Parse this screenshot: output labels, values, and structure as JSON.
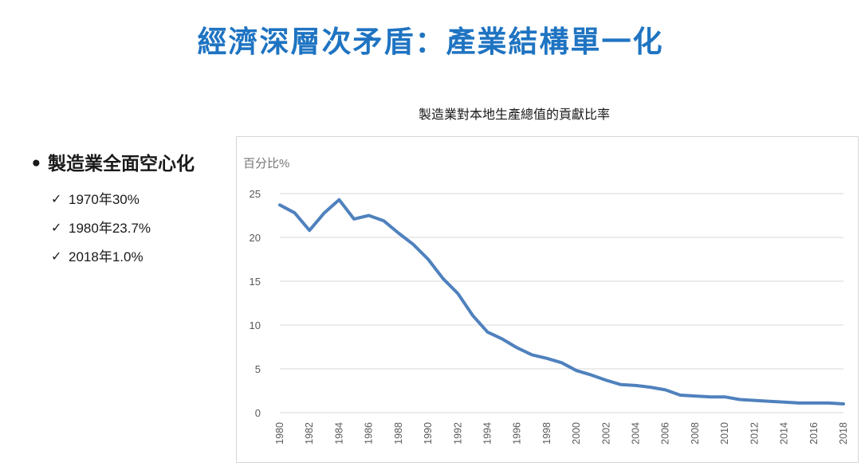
{
  "slide": {
    "title": "經濟深層次矛盾：產業結構單一化"
  },
  "bullets": {
    "main": "製造業全面空心化",
    "checks": [
      "1970年30%",
      "1980年23.7%",
      "2018年1.0%"
    ]
  },
  "chart_data": {
    "type": "line",
    "title": "製造業對本地生產總值的貢獻比率",
    "ylabel": "百分比%",
    "xlabel": "",
    "ylim": [
      0,
      25
    ],
    "yticks": [
      0,
      5,
      10,
      15,
      20,
      25
    ],
    "grid": true,
    "line_color": "#4f81bd",
    "x": [
      1980,
      1981,
      1982,
      1983,
      1984,
      1985,
      1986,
      1987,
      1988,
      1989,
      1990,
      1991,
      1992,
      1993,
      1994,
      1995,
      1996,
      1997,
      1998,
      1999,
      2000,
      2001,
      2002,
      2003,
      2004,
      2005,
      2006,
      2007,
      2008,
      2009,
      2010,
      2011,
      2012,
      2013,
      2014,
      2015,
      2016,
      2017,
      2018
    ],
    "xtick_labels": [
      "1980",
      "1982",
      "1984",
      "1986",
      "1988",
      "1990",
      "1992",
      "1994",
      "1996",
      "1998",
      "2000",
      "2002",
      "2004",
      "2006",
      "2008",
      "2010",
      "2012",
      "2014",
      "2016",
      "2018"
    ],
    "series": [
      {
        "name": "製造業對本地生產總值的貢獻比率",
        "values": [
          23.7,
          22.8,
          20.8,
          22.8,
          24.3,
          22.1,
          22.5,
          21.9,
          20.5,
          19.2,
          17.5,
          15.3,
          13.6,
          11.1,
          9.2,
          8.4,
          7.4,
          6.6,
          6.2,
          5.7,
          4.8,
          4.3,
          3.7,
          3.2,
          3.1,
          2.9,
          2.6,
          2.0,
          1.9,
          1.8,
          1.8,
          1.5,
          1.4,
          1.3,
          1.2,
          1.1,
          1.1,
          1.1,
          1.0
        ]
      }
    ]
  }
}
